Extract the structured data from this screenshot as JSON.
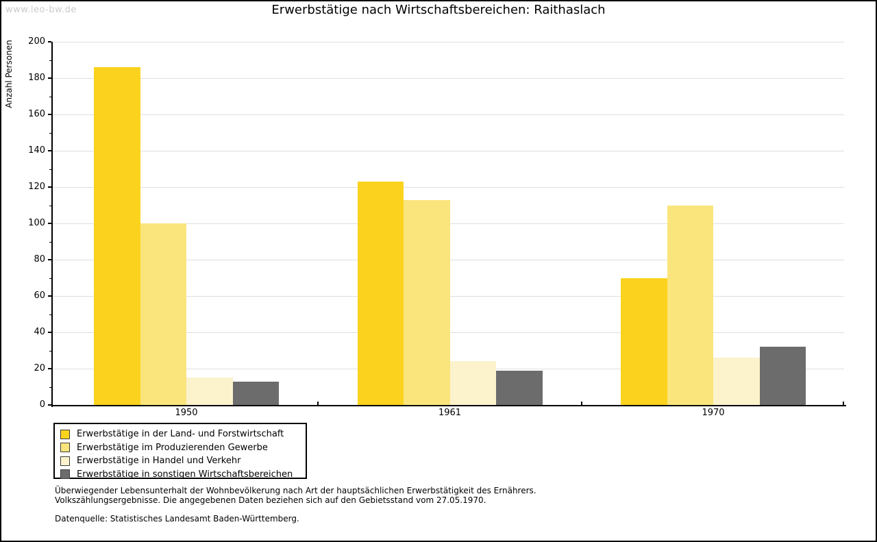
{
  "watermark": "www.leo-bw.de",
  "title": "Erwerbstätige nach Wirtschaftsbereichen: Raithaslach",
  "chart_data": {
    "type": "bar",
    "title": "Erwerbstätige nach Wirtschaftsbereichen: Raithaslach",
    "xlabel": "",
    "ylabel": "Anzahl Personen",
    "categories": [
      "1950",
      "1961",
      "1970"
    ],
    "series": [
      {
        "name": "Erwerbstätige in der Land- und Forstwirtschaft",
        "color": "#FBD31E",
        "values": [
          186,
          123,
          70
        ]
      },
      {
        "name": "Erwerbstätige im Produzierenden Gewerbe",
        "color": "#FAE57D",
        "values": [
          100,
          113,
          110
        ]
      },
      {
        "name": "Erwerbstätige in Handel und Verkehr",
        "color": "#FCF3CC",
        "values": [
          15,
          24,
          26
        ]
      },
      {
        "name": "Erwerbstätige in sonstigen Wirtschaftsbereichen",
        "color": "#6C6C6C",
        "values": [
          13,
          19,
          32
        ]
      }
    ],
    "ylim": [
      0,
      200
    ],
    "ytick_step": 20,
    "yminor_step": 10,
    "grid": true,
    "grid_color": "#DEDEDE",
    "legend_position": "bottom-left"
  },
  "footnotes": {
    "line1": "Überwiegender Lebensunterhalt der Wohnbevölkerung nach Art der hauptsächlichen Erwerbstätigkeit des Ernährers.",
    "line2": "Volkszählungsergebnisse. Die angegebenen Daten beziehen sich auf den Gebietsstand vom 27.05.1970.",
    "source": "Datenquelle: Statistisches Landesamt Baden-Württemberg."
  }
}
